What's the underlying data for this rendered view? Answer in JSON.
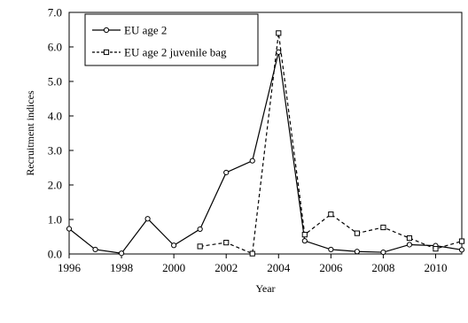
{
  "chart_data": {
    "type": "line",
    "xlabel": "Year",
    "ylabel": "Recruitment indices",
    "xlim": [
      1996,
      2011
    ],
    "ylim": [
      0,
      7
    ],
    "x_ticks": [
      1996,
      1998,
      2000,
      2002,
      2004,
      2006,
      2008,
      2010
    ],
    "x_tick_labels": [
      "1996",
      "1998",
      "2000",
      "2002",
      "2004",
      "2006",
      "2008",
      "2010"
    ],
    "y_ticks": [
      0,
      1,
      2,
      3,
      4,
      5,
      6,
      7
    ],
    "y_tick_labels": [
      "0.0",
      "1.0",
      "2.0",
      "3.0",
      "4.0",
      "5.0",
      "6.0",
      "7.0"
    ],
    "grid": false,
    "legend_position": "top-left",
    "series": [
      {
        "name": "EU age 2",
        "line_style": "solid",
        "marker": "circle",
        "color": "#000000",
        "x": [
          1996,
          1997,
          1998,
          1999,
          2000,
          2001,
          2002,
          2003,
          2004,
          2005,
          2006,
          2007,
          2008,
          2009,
          2010,
          2011
        ],
        "y": [
          0.73,
          0.13,
          0.02,
          1.02,
          0.25,
          0.72,
          2.36,
          2.7,
          5.85,
          0.38,
          0.13,
          0.07,
          0.05,
          0.27,
          0.24,
          0.12
        ]
      },
      {
        "name": "EU age 2 juvenile bag",
        "line_style": "dashed",
        "marker": "square",
        "color": "#000000",
        "x": [
          2001,
          2002,
          2003,
          2004,
          2005,
          2006,
          2007,
          2008,
          2009,
          2010,
          2011
        ],
        "y": [
          0.22,
          0.33,
          0.01,
          6.4,
          0.56,
          1.15,
          0.6,
          0.77,
          0.46,
          0.15,
          0.37
        ]
      }
    ]
  }
}
